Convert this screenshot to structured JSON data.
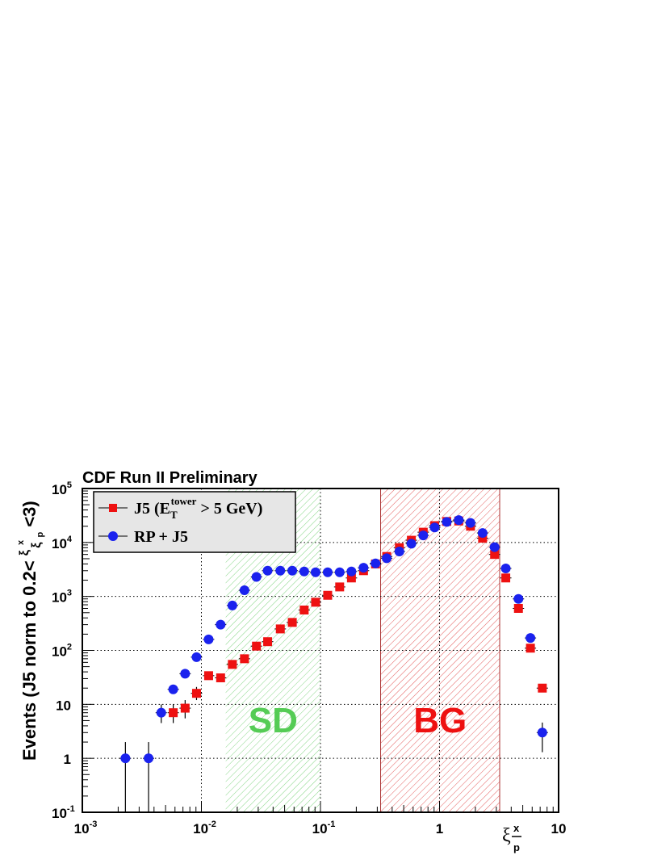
{
  "chart_data": {
    "type": "scatter",
    "title": "CDF Run II Preliminary",
    "ylabel": "Events (J5 norm to 0.2<ξ/ξ <3)",
    "xlabel": "ξ",
    "xlabel_parts": {
      "main": "ξ",
      "sup": "x",
      "sub": "p"
    },
    "ylabel_parts": {
      "pre": "Events (J5 norm to 0.2<",
      "frac_top": "ξ",
      "frac_top_sup": "x",
      "frac_bottom": "ξ",
      "frac_bottom_sub": "p",
      "post": " <3)"
    },
    "x_scale": "log",
    "y_scale": "log",
    "xlim": [
      0.001,
      10
    ],
    "ylim": [
      0.1,
      100000
    ],
    "grid": true,
    "x_ticks": [
      {
        "value": 0.001,
        "base": "10",
        "exp": "-3"
      },
      {
        "value": 0.01,
        "base": "10",
        "exp": "-2"
      },
      {
        "value": 0.1,
        "base": "10",
        "exp": "-1"
      },
      {
        "value": 1,
        "base": "1",
        "exp": ""
      },
      {
        "value": 10,
        "base": "10",
        "exp": ""
      }
    ],
    "y_ticks": [
      {
        "value": 0.1,
        "base": "10",
        "exp": "-1"
      },
      {
        "value": 1,
        "base": "1",
        "exp": ""
      },
      {
        "value": 10,
        "base": "10",
        "exp": ""
      },
      {
        "value": 100,
        "base": "10",
        "exp": "2"
      },
      {
        "value": 1000,
        "base": "10",
        "exp": "3"
      },
      {
        "value": 10000,
        "base": "10",
        "exp": "4"
      },
      {
        "value": 100000,
        "base": "10",
        "exp": "5"
      }
    ],
    "legend": {
      "placement": "top-left",
      "entries": [
        {
          "series": "J5",
          "parts": {
            "pre": "J5 (E",
            "sub": "T",
            "sup": "tower",
            "post": " > 5 GeV)"
          }
        },
        {
          "series": "RP + J5",
          "parts": {
            "pre": "RP + J5",
            "sub": "",
            "sup": "",
            "post": ""
          }
        }
      ]
    },
    "regions": [
      {
        "label": "SD",
        "x_range": [
          0.016,
          0.1
        ],
        "color": "#55cc55"
      },
      {
        "label": "BG",
        "x_range": [
          0.32,
          3.2
        ],
        "color": "#ee1111"
      }
    ],
    "series": [
      {
        "name": "J5 (E_T^tower > 5 GeV)",
        "marker": "square",
        "color": "#ee1111",
        "points": [
          {
            "x": 0.0058,
            "y": 7,
            "err_lo": 4.5,
            "err_hi": 10
          },
          {
            "x": 0.0073,
            "y": 8.5,
            "err_lo": 5.5,
            "err_hi": 12
          },
          {
            "x": 0.0091,
            "y": 16,
            "err_lo": 12,
            "err_hi": 21
          },
          {
            "x": 0.0115,
            "y": 34
          },
          {
            "x": 0.0145,
            "y": 31
          },
          {
            "x": 0.0182,
            "y": 55
          },
          {
            "x": 0.023,
            "y": 70
          },
          {
            "x": 0.029,
            "y": 120
          },
          {
            "x": 0.036,
            "y": 145
          },
          {
            "x": 0.046,
            "y": 250
          },
          {
            "x": 0.058,
            "y": 330
          },
          {
            "x": 0.073,
            "y": 560
          },
          {
            "x": 0.091,
            "y": 780
          },
          {
            "x": 0.115,
            "y": 1050
          },
          {
            "x": 0.145,
            "y": 1500
          },
          {
            "x": 0.182,
            "y": 2200
          },
          {
            "x": 0.23,
            "y": 3000
          },
          {
            "x": 0.29,
            "y": 4000
          },
          {
            "x": 0.36,
            "y": 5500
          },
          {
            "x": 0.46,
            "y": 8000
          },
          {
            "x": 0.58,
            "y": 11000
          },
          {
            "x": 0.73,
            "y": 15500
          },
          {
            "x": 0.91,
            "y": 20500
          },
          {
            "x": 1.15,
            "y": 24500
          },
          {
            "x": 1.45,
            "y": 25000
          },
          {
            "x": 1.82,
            "y": 20000
          },
          {
            "x": 2.3,
            "y": 12000
          },
          {
            "x": 2.9,
            "y": 6000
          },
          {
            "x": 3.6,
            "y": 2200
          },
          {
            "x": 4.6,
            "y": 600
          },
          {
            "x": 5.8,
            "y": 110
          },
          {
            "x": 7.3,
            "y": 20
          }
        ]
      },
      {
        "name": "RP + J5",
        "marker": "circle",
        "color": "#1a22ee",
        "points": [
          {
            "x": 0.0023,
            "y": 1,
            "err_lo": 0.1,
            "err_hi": 2
          },
          {
            "x": 0.0036,
            "y": 1,
            "err_lo": 0.1,
            "err_hi": 2
          },
          {
            "x": 0.0046,
            "y": 7,
            "err_lo": 4.5,
            "err_hi": 10
          },
          {
            "x": 0.0058,
            "y": 19
          },
          {
            "x": 0.0073,
            "y": 37
          },
          {
            "x": 0.0091,
            "y": 75
          },
          {
            "x": 0.0115,
            "y": 160
          },
          {
            "x": 0.0145,
            "y": 300
          },
          {
            "x": 0.0182,
            "y": 680
          },
          {
            "x": 0.023,
            "y": 1300
          },
          {
            "x": 0.029,
            "y": 2300
          },
          {
            "x": 0.036,
            "y": 3000
          },
          {
            "x": 0.046,
            "y": 3000
          },
          {
            "x": 0.058,
            "y": 3000
          },
          {
            "x": 0.073,
            "y": 2900
          },
          {
            "x": 0.091,
            "y": 2800
          },
          {
            "x": 0.115,
            "y": 2800
          },
          {
            "x": 0.145,
            "y": 2800
          },
          {
            "x": 0.182,
            "y": 2900
          },
          {
            "x": 0.23,
            "y": 3400
          },
          {
            "x": 0.29,
            "y": 4100
          },
          {
            "x": 0.36,
            "y": 5100
          },
          {
            "x": 0.46,
            "y": 6800
          },
          {
            "x": 0.58,
            "y": 9500
          },
          {
            "x": 0.73,
            "y": 13500
          },
          {
            "x": 0.91,
            "y": 19000
          },
          {
            "x": 1.15,
            "y": 24000
          },
          {
            "x": 1.45,
            "y": 26000
          },
          {
            "x": 1.82,
            "y": 23000
          },
          {
            "x": 2.3,
            "y": 15000
          },
          {
            "x": 2.9,
            "y": 8200
          },
          {
            "x": 3.6,
            "y": 3300
          },
          {
            "x": 4.6,
            "y": 900
          },
          {
            "x": 5.8,
            "y": 170
          },
          {
            "x": 7.3,
            "y": 3,
            "err_lo": 1.3,
            "err_hi": 4.6
          }
        ]
      }
    ]
  }
}
